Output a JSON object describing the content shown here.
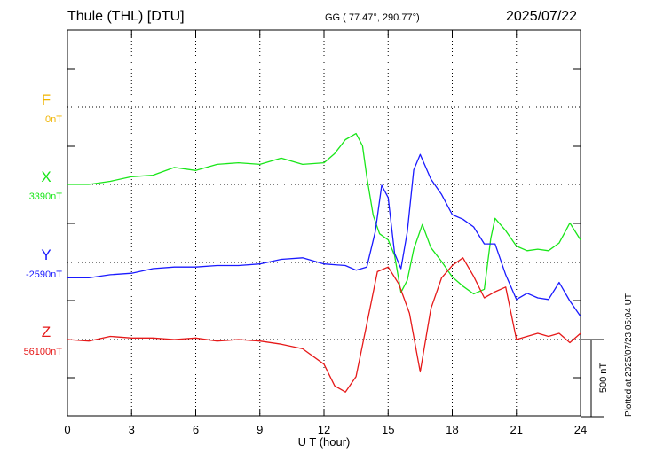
{
  "header": {
    "station": "Thule (THL)  [DTU]",
    "coords": "GG ( 77.47°, 290.77°)",
    "date": "2025/07/22"
  },
  "plotted_note": "Plotted at 2025/07/23 05:04 UT",
  "chart_data": {
    "type": "line",
    "xlabel": "U T (hour)",
    "xlim": [
      0,
      24
    ],
    "xticks": [
      0,
      3,
      6,
      9,
      12,
      15,
      18,
      21,
      24
    ],
    "scale_bar_label": "500 nT",
    "scale_bar_nT": 500,
    "y_range_nT": [
      -1750,
      2250
    ],
    "series": [
      {
        "name": "F",
        "baseline": "0nT",
        "color": "#f0b400",
        "data": []
      },
      {
        "name": "X",
        "baseline": "3390nT",
        "color": "#19e619",
        "data": [
          [
            0,
            0
          ],
          [
            1,
            0
          ],
          [
            2,
            20
          ],
          [
            3,
            50
          ],
          [
            4,
            60
          ],
          [
            5,
            110
          ],
          [
            6,
            90
          ],
          [
            7,
            130
          ],
          [
            8,
            140
          ],
          [
            9,
            130
          ],
          [
            10,
            170
          ],
          [
            11,
            130
          ],
          [
            12,
            140
          ],
          [
            12.5,
            200
          ],
          [
            13,
            290
          ],
          [
            13.5,
            330
          ],
          [
            13.8,
            250
          ],
          [
            14,
            50
          ],
          [
            14.3,
            -200
          ],
          [
            14.6,
            -320
          ],
          [
            15,
            -360
          ],
          [
            15.3,
            -460
          ],
          [
            15.6,
            -700
          ],
          [
            15.9,
            -620
          ],
          [
            16.2,
            -420
          ],
          [
            16.6,
            -260
          ],
          [
            17,
            -410
          ],
          [
            17.5,
            -500
          ],
          [
            18,
            -600
          ],
          [
            18.5,
            -660
          ],
          [
            19,
            -710
          ],
          [
            19.5,
            -680
          ],
          [
            19.8,
            -350
          ],
          [
            20,
            -220
          ],
          [
            20.5,
            -300
          ],
          [
            21,
            -400
          ],
          [
            21.5,
            -430
          ],
          [
            22,
            -420
          ],
          [
            22.5,
            -430
          ],
          [
            23,
            -380
          ],
          [
            23.5,
            -250
          ],
          [
            24,
            -360
          ]
        ]
      },
      {
        "name": "Y",
        "baseline": "-2590nT",
        "color": "#1a1aff",
        "data": [
          [
            0,
            -100
          ],
          [
            1,
            -100
          ],
          [
            2,
            -80
          ],
          [
            3,
            -70
          ],
          [
            4,
            -40
          ],
          [
            5,
            -30
          ],
          [
            6,
            -30
          ],
          [
            7,
            -20
          ],
          [
            8,
            -20
          ],
          [
            9,
            -10
          ],
          [
            10,
            20
          ],
          [
            11,
            30
          ],
          [
            12,
            -10
          ],
          [
            13,
            -20
          ],
          [
            13.5,
            -50
          ],
          [
            14,
            -30
          ],
          [
            14.4,
            200
          ],
          [
            14.7,
            500
          ],
          [
            15,
            420
          ],
          [
            15.3,
            60
          ],
          [
            15.6,
            -40
          ],
          [
            15.9,
            200
          ],
          [
            16.2,
            600
          ],
          [
            16.5,
            700
          ],
          [
            17,
            540
          ],
          [
            17.5,
            440
          ],
          [
            18,
            310
          ],
          [
            18.5,
            280
          ],
          [
            19,
            230
          ],
          [
            19.5,
            120
          ],
          [
            20,
            120
          ],
          [
            20.5,
            -80
          ],
          [
            21,
            -240
          ],
          [
            21.5,
            -200
          ],
          [
            22,
            -230
          ],
          [
            22.5,
            -240
          ],
          [
            23,
            -130
          ],
          [
            23.5,
            -250
          ],
          [
            24,
            -350
          ]
        ]
      },
      {
        "name": "Z",
        "baseline": "56100nT",
        "color": "#e61919",
        "data": [
          [
            0,
            0
          ],
          [
            1,
            -10
          ],
          [
            2,
            20
          ],
          [
            3,
            10
          ],
          [
            4,
            10
          ],
          [
            5,
            0
          ],
          [
            6,
            10
          ],
          [
            7,
            -10
          ],
          [
            8,
            0
          ],
          [
            9,
            -10
          ],
          [
            10,
            -30
          ],
          [
            11,
            -60
          ],
          [
            12,
            -160
          ],
          [
            12.5,
            -300
          ],
          [
            13,
            -340
          ],
          [
            13.5,
            -240
          ],
          [
            14,
            100
          ],
          [
            14.5,
            440
          ],
          [
            15,
            470
          ],
          [
            15.5,
            360
          ],
          [
            16,
            170
          ],
          [
            16.5,
            -210
          ],
          [
            17,
            200
          ],
          [
            17.5,
            400
          ],
          [
            18,
            480
          ],
          [
            18.5,
            530
          ],
          [
            19,
            410
          ],
          [
            19.5,
            270
          ],
          [
            20,
            310
          ],
          [
            20.5,
            340
          ],
          [
            21,
            0
          ],
          [
            21.5,
            20
          ],
          [
            22,
            40
          ],
          [
            22.5,
            20
          ],
          [
            23,
            40
          ],
          [
            23.5,
            -20
          ],
          [
            24,
            40
          ]
        ]
      }
    ]
  }
}
